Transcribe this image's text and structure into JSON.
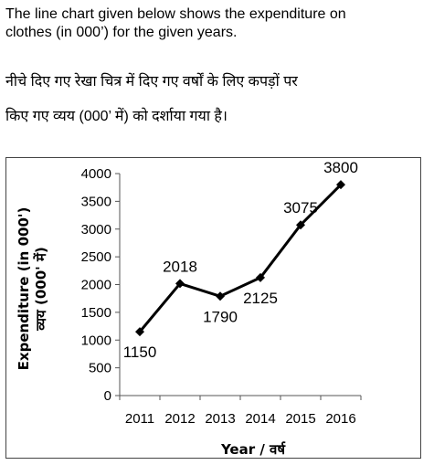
{
  "question": {
    "en_line1": "The line chart given below shows the expenditure on",
    "en_line2": "clothes (in 000’) for the given years.",
    "hi_line1": "नीचे दिए गए रेखा चित्र में दिए गए वर्षों के लिए कपड़ों पर",
    "hi_line2": "किए गए व्यय (000’ में) को दर्शाया गया है।"
  },
  "chart_data": {
    "type": "line",
    "categories": [
      "2011",
      "2012",
      "2013",
      "2014",
      "2015",
      "2016"
    ],
    "values": [
      1150,
      2018,
      1790,
      2125,
      3075,
      3800
    ],
    "data_labels": [
      "1150",
      "2018",
      "1790",
      "2125",
      "3075",
      "3800"
    ],
    "xlabel": "Year / वर्ष",
    "ylabel_line1": "Expenditure (in 000')",
    "ylabel_line2": "व्यय (000' में)",
    "ylim": [
      0,
      4000
    ],
    "yticks": [
      "0",
      "500",
      "1000",
      "1500",
      "2000",
      "2500",
      "3000",
      "3500",
      "4000"
    ],
    "grid": false,
    "marker": "diamond",
    "line_color": "#000000"
  }
}
